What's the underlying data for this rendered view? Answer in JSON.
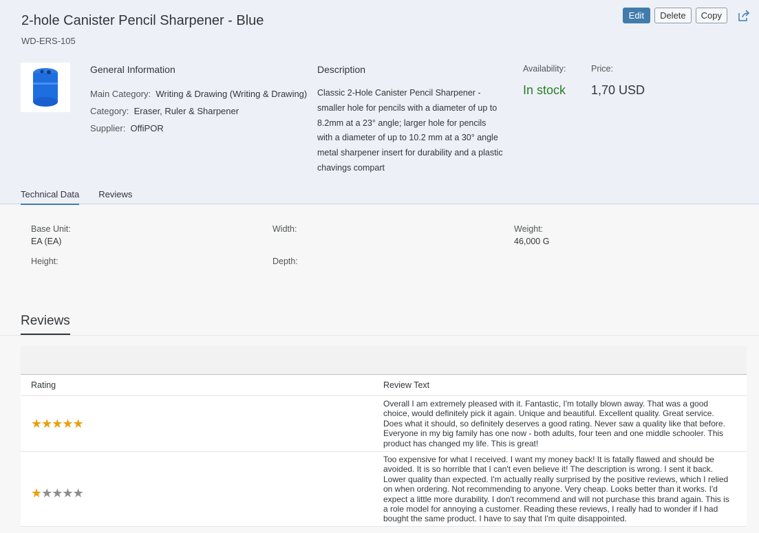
{
  "header": {
    "title": "2-hole Canister Pencil Sharpener - Blue",
    "subtitle": "WD-ERS-105",
    "actions": {
      "edit": "Edit",
      "delete": "Delete",
      "copy": "Copy"
    },
    "general": {
      "heading": "General Information",
      "main_category_label": "Main Category:",
      "main_category": "Writing & Drawing (Writing & Drawing)",
      "category_label": "Category:",
      "category": "Eraser, Ruler & Sharpener",
      "supplier_label": "Supplier:",
      "supplier": "OffiPOR"
    },
    "description": {
      "heading": "Description",
      "text": "Classic 2-Hole Canister Pencil Sharpener - smaller hole for pencils with a diameter of up to 8.2mm at a 23° angle; larger hole for pencils with a diameter of up to 10.2 mm at a 30° angle metal sharpener insert for durability and a plastic chavings compart"
    },
    "availability_label": "Availability:",
    "availability": "In stock",
    "availability_color": "#2b7d2b",
    "price_label": "Price:",
    "price": "1,70  USD",
    "tabs": [
      {
        "label": "Technical Data"
      },
      {
        "label": "Reviews"
      }
    ]
  },
  "technical": {
    "base_unit_label": "Base Unit:",
    "base_unit": "EA (EA)",
    "width_label": "Width:",
    "weight_label": "Weight:",
    "weight": "46,000 G",
    "height_label": "Height:",
    "depth_label": "Depth:"
  },
  "reviews": {
    "title": "Reviews",
    "columns": [
      "Rating",
      "Review Text"
    ],
    "star_color": "#e9a010",
    "rows": [
      {
        "rating": 5,
        "text": "Overall I am extremely pleased with it. Fantastic, I'm totally blown away. That was a good choice, would definitely pick it again. Unique and beautiful. Excellent quality. Great service. Does what it should, so definitely deserves a good rating. Never saw a quality like that before. Everyone in my big family has one now - both adults, four teen and one middle schooler. This product has changed my life. This is great!"
      },
      {
        "rating": 1,
        "text": "Too expensive for what I received. I want my money back! It is fatally flawed and should be avoided. It is so horrible that I can't even believe it! The description is wrong. I sent it back. Lower quality than expected. I'm actually really surprised by the positive reviews, which I relied on when ordering. Not recommending to anyone. Very cheap. Looks better than it works. I'd expect a little more durability. I don't recommend and will not purchase this brand again. This is a role model for annoying a customer. Reading these reviews, I really had to wonder if I had bought the same product. I have to say that I'm quite disappointed."
      }
    ]
  }
}
